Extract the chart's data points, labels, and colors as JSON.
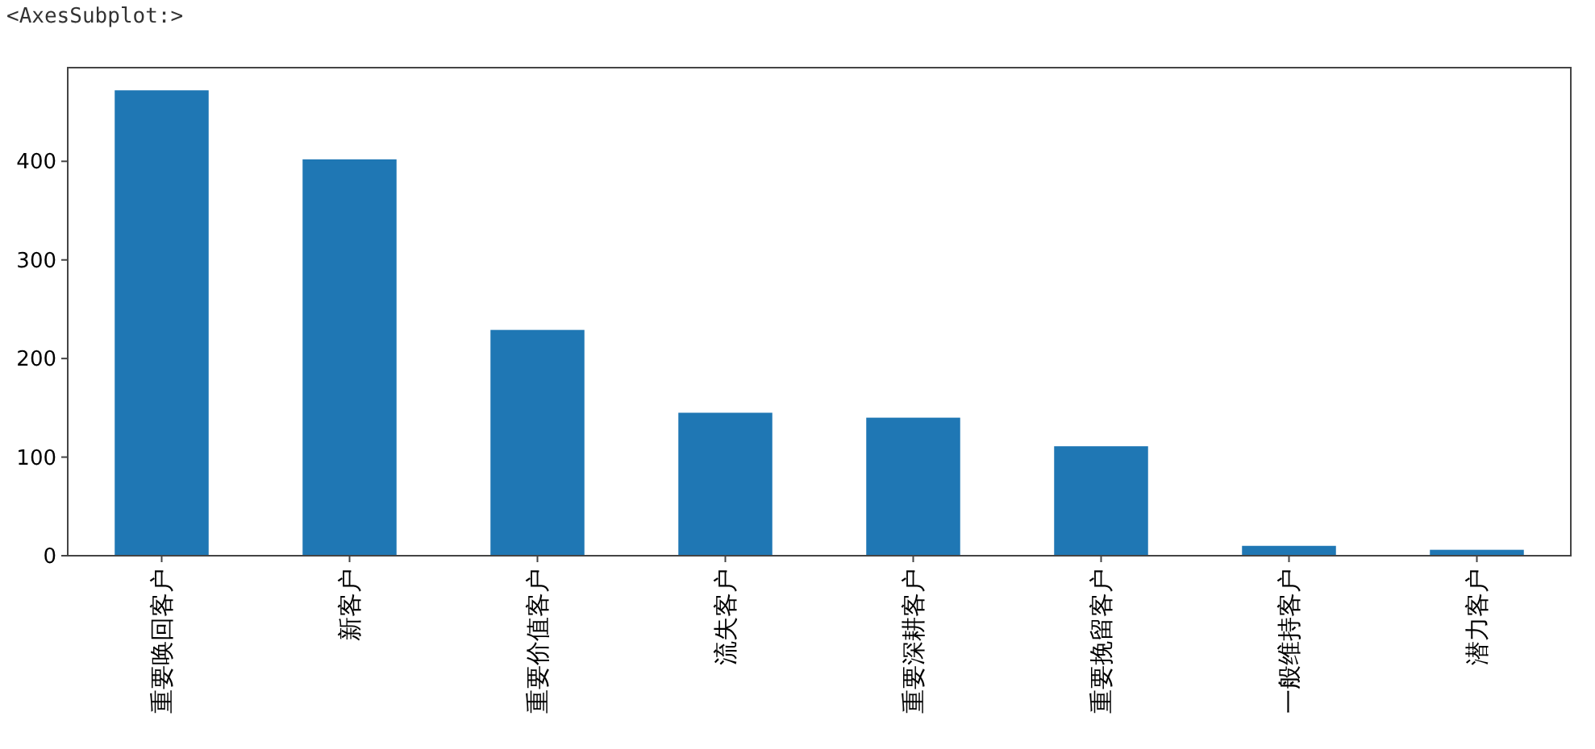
{
  "chart_data": {
    "type": "bar",
    "categories": [
      "重要唤回客户",
      "新客户",
      "重要价值客户",
      "流失客户",
      "重要深耕客户",
      "重要挽留客户",
      "一般维持客户",
      "潜力客户"
    ],
    "values": [
      472,
      402,
      229,
      145,
      140,
      111,
      10,
      6
    ],
    "color": "#1f77b4",
    "ylim": [
      0,
      495
    ],
    "yticks": [
      0,
      100,
      200,
      300,
      400
    ],
    "grid": false,
    "annotations": [
      "<AxesSubplot:>"
    ]
  }
}
